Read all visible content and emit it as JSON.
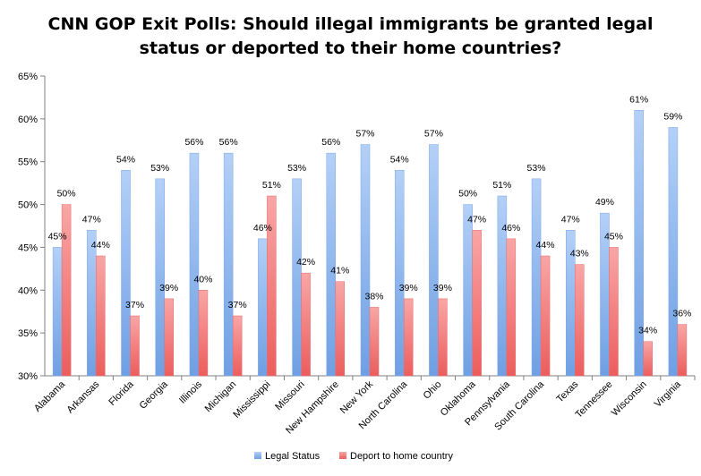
{
  "chart_data": {
    "type": "bar",
    "title_lines": [
      "CNN GOP Exit Polls: Should illegal immigrants be granted legal",
      "status or deported to their home countries?"
    ],
    "categories": [
      "Alabama",
      "Arkansas",
      "Florida",
      "Georgia",
      "Illinois",
      "Michigan",
      "Mississippi",
      "Missouri",
      "New Hampshire",
      "New York",
      "North Carolina",
      "Ohio",
      "Oklahoma",
      "Pennsylvania",
      "South Carolina",
      "Texas",
      "Tennessee",
      "Wisconsin",
      "Virginia"
    ],
    "series": [
      {
        "name": "Legal Status",
        "color": "#8db6ee",
        "values": [
          45,
          47,
          54,
          53,
          56,
          56,
          46,
          53,
          56,
          57,
          54,
          57,
          50,
          51,
          53,
          47,
          49,
          61,
          59
        ]
      },
      {
        "name": "Deport to home country",
        "color": "#f28080",
        "values": [
          50,
          44,
          37,
          39,
          40,
          37,
          51,
          42,
          41,
          38,
          39,
          39,
          47,
          46,
          44,
          43,
          45,
          34,
          36
        ]
      }
    ],
    "ylim": [
      30,
      65
    ],
    "yticks": [
      "30%",
      "35%",
      "40%",
      "45%",
      "50%",
      "55%",
      "60%",
      "65%"
    ],
    "value_suffix": "%",
    "legend_position": "bottom",
    "gridlines": false
  }
}
